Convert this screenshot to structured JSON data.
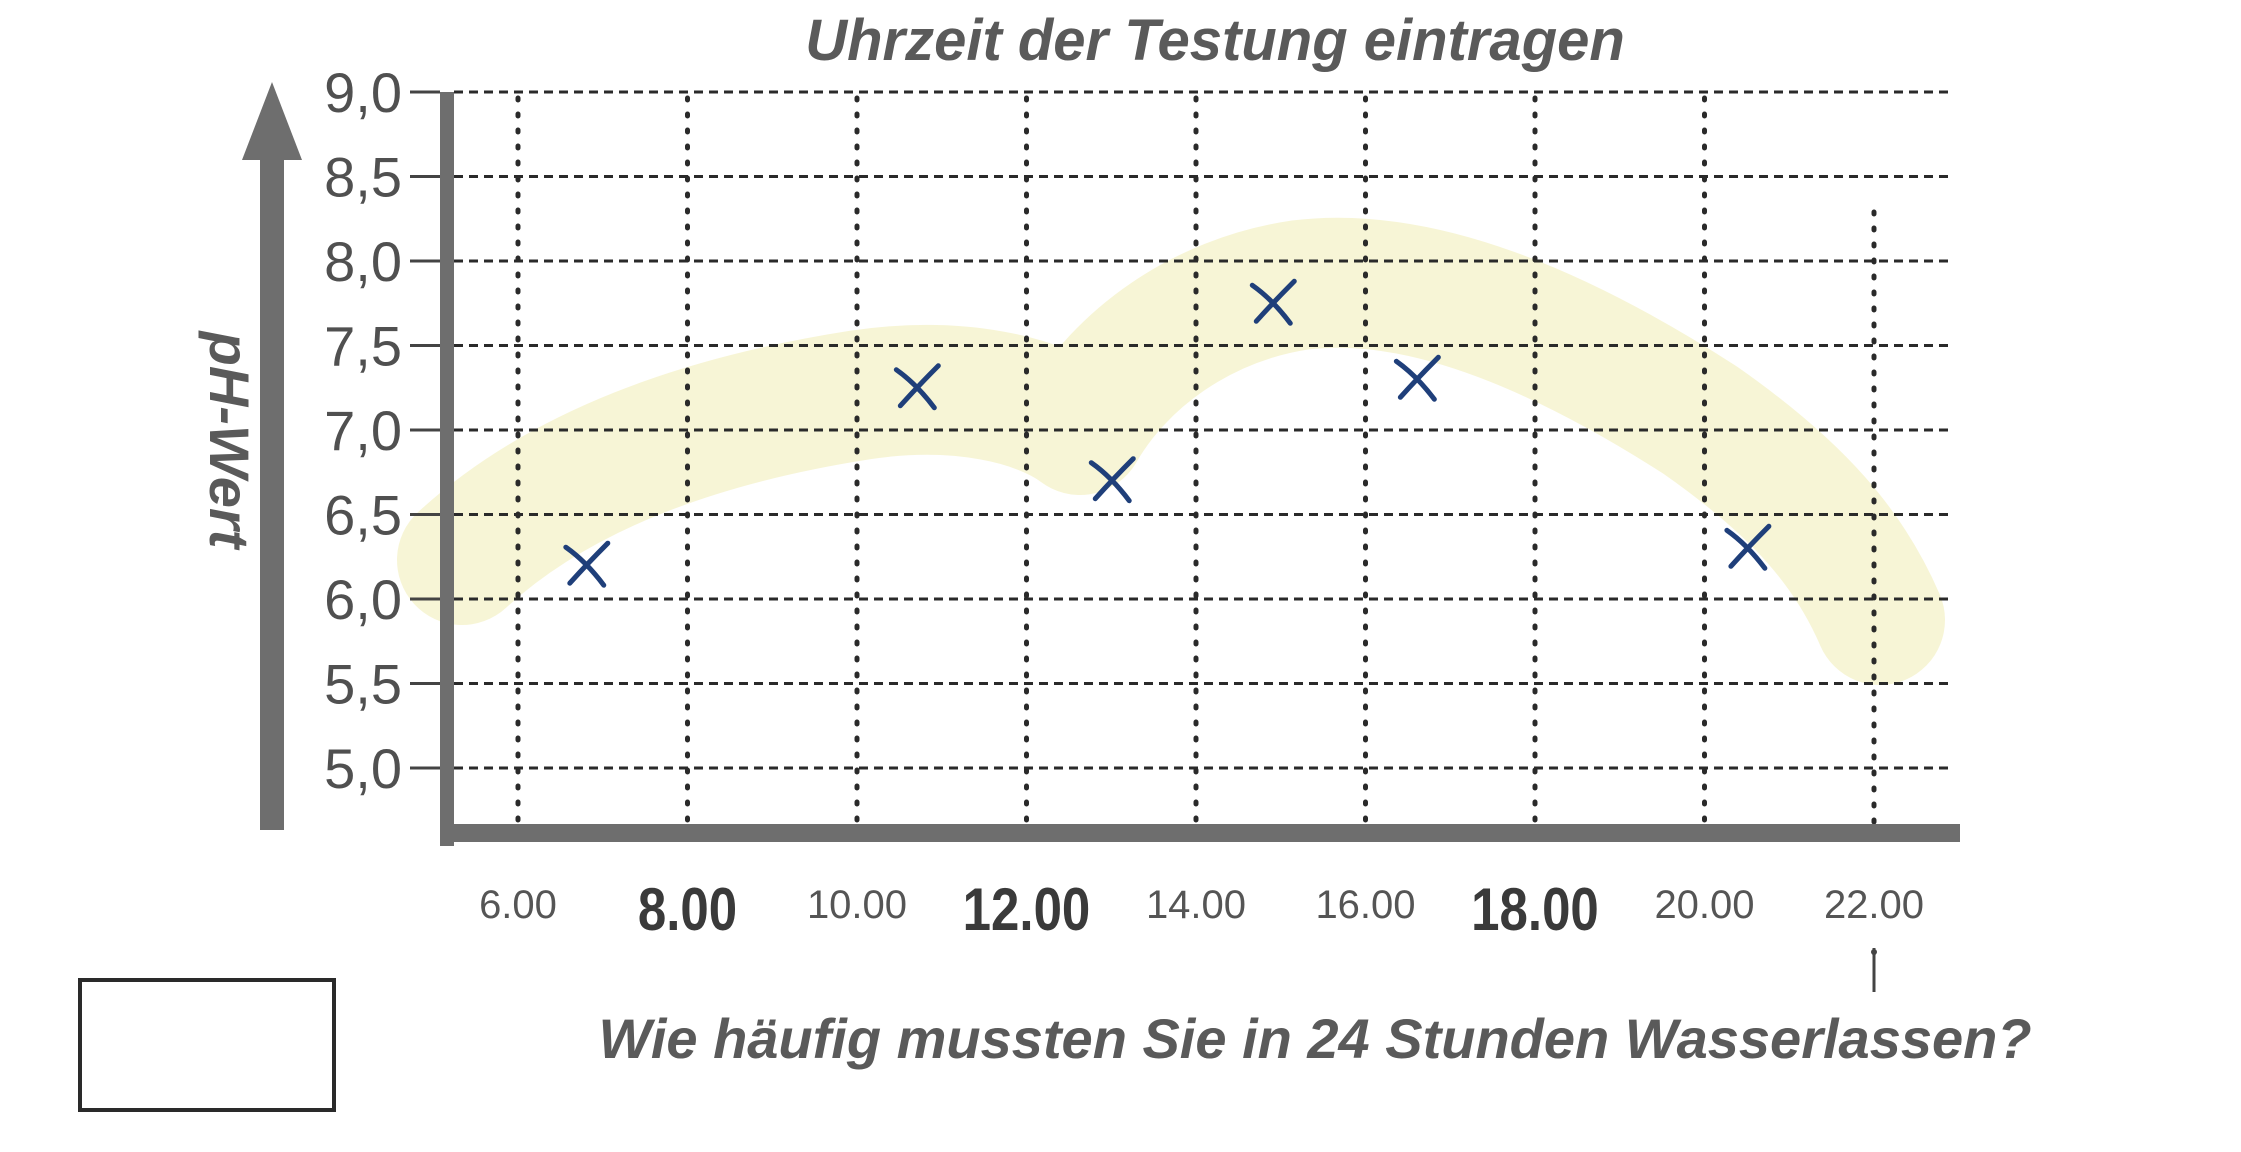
{
  "question": "Wie häufig mussten Sie in 24 Stunden Wasserlassen?",
  "colors": {
    "axis": "#6a6a6a",
    "grid": "#2a2a2a",
    "marker": "#1f3f7a",
    "highlight": "#f1ecb4"
  },
  "chart_data": {
    "type": "scatter",
    "title": "Uhrzeit der Testung eintragen",
    "xlabel": "",
    "ylabel": "pH-Wert",
    "x_ticks": [
      "6.00",
      "8.00",
      "10.00",
      "12.00",
      "14.00",
      "16.00",
      "18.00",
      "20.00",
      "22.00"
    ],
    "x_tick_bold": [
      false,
      true,
      false,
      true,
      false,
      false,
      true,
      false,
      false
    ],
    "y_ticks": [
      "9,0",
      "8,5",
      "8,0",
      "7,5",
      "7,0",
      "6,5",
      "6,0",
      "5,5",
      "5,0"
    ],
    "ylim": [
      5.0,
      9.0
    ],
    "grid": true,
    "series": [
      {
        "marker": "x",
        "points": [
          {
            "x": 6.8,
            "y": 6.2
          },
          {
            "x": 10.7,
            "y": 7.25
          },
          {
            "x": 13.0,
            "y": 6.7
          },
          {
            "x": 14.9,
            "y": 7.75
          },
          {
            "x": 16.6,
            "y": 7.3
          },
          {
            "x": 20.5,
            "y": 6.3
          }
        ]
      }
    ]
  }
}
